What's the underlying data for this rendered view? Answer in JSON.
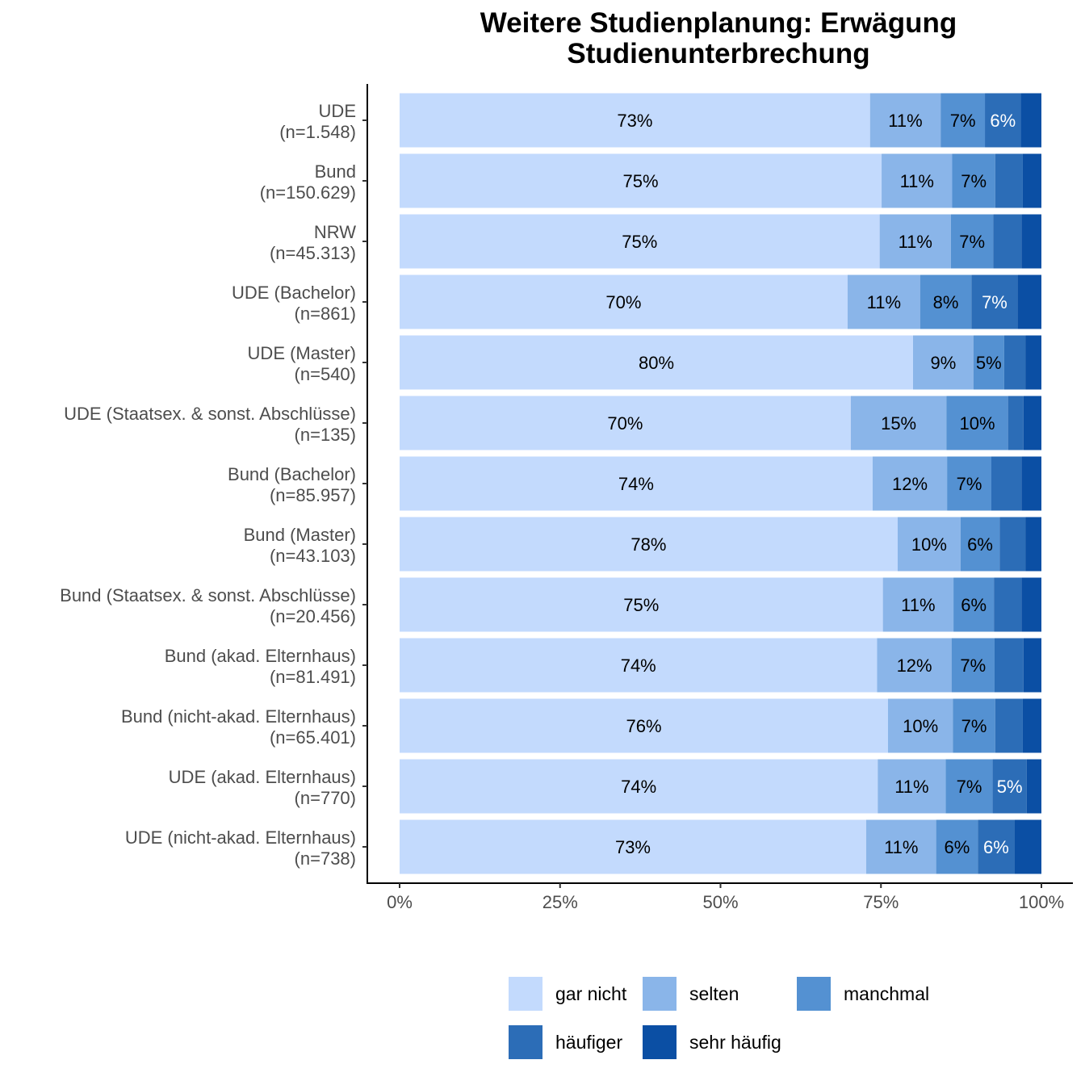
{
  "chart_data": {
    "type": "bar",
    "orientation": "horizontal",
    "stacked": true,
    "title": [
      "Weitere Studienplanung: Erwägung",
      "Studienunterbrechung"
    ],
    "xlim": [
      0,
      100
    ],
    "x_ticks": [
      "0%",
      "25%",
      "50%",
      "75%",
      "100%"
    ],
    "categories": [
      [
        "UDE",
        "(n=1.548)"
      ],
      [
        "Bund",
        "(n=150.629)"
      ],
      [
        "NRW",
        "(n=45.313)"
      ],
      [
        "UDE (Bachelor)",
        "(n=861)"
      ],
      [
        "UDE (Master)",
        "(n=540)"
      ],
      [
        "UDE (Staatsex. & sonst. Abschlüsse)",
        "(n=135)"
      ],
      [
        "Bund (Bachelor)",
        "(n=85.957)"
      ],
      [
        "Bund (Master)",
        "(n=43.103)"
      ],
      [
        "Bund (Staatsex. & sonst. Abschlüsse)",
        "(n=20.456)"
      ],
      [
        "Bund (akad. Elternhaus)",
        "(n=81.491)"
      ],
      [
        "Bund (nicht-akad. Elternhaus)",
        "(n=65.401)"
      ],
      [
        "UDE (akad. Elternhaus)",
        "(n=770)"
      ],
      [
        "UDE (nicht-akad. Elternhaus)",
        "(n=738)"
      ]
    ],
    "series": [
      {
        "name": "gar nicht",
        "color": "#c3dafd",
        "label_color": "#000000",
        "values": [
          73.3,
          75.1,
          74.8,
          69.8,
          80.0,
          70.3,
          73.7,
          77.6,
          75.3,
          74.4,
          76.1,
          74.5,
          72.7
        ],
        "labels": [
          "73%",
          "75%",
          "75%",
          "70%",
          "80%",
          "70%",
          "74%",
          "78%",
          "75%",
          "74%",
          "76%",
          "74%",
          "73%"
        ]
      },
      {
        "name": "selten",
        "color": "#8ab5e9",
        "label_color": "#000000",
        "values": [
          11.0,
          11.0,
          11.1,
          11.3,
          9.4,
          14.9,
          11.6,
          9.8,
          11.0,
          11.6,
          10.1,
          10.6,
          10.9
        ],
        "labels": [
          "11%",
          "11%",
          "11%",
          "11%",
          "9%",
          "15%",
          "12%",
          "10%",
          "11%",
          "12%",
          "10%",
          "11%",
          "11%"
        ]
      },
      {
        "name": "manchmal",
        "color": "#5491d2",
        "label_color": "#000000",
        "values": [
          6.9,
          6.7,
          6.6,
          8.0,
          4.8,
          9.6,
          6.9,
          6.1,
          6.3,
          6.7,
          6.6,
          7.3,
          6.5
        ],
        "labels": [
          "7%",
          "7%",
          "7%",
          "8%",
          "5%",
          "10%",
          "7%",
          "6%",
          "6%",
          "7%",
          "7%",
          "7%",
          "6%"
        ]
      },
      {
        "name": "häufiger",
        "color": "#2c6db7",
        "label_color": "#ffffff",
        "values": [
          5.6,
          4.3,
          4.4,
          7.2,
          3.3,
          2.4,
          4.7,
          4.0,
          4.3,
          4.5,
          4.3,
          5.3,
          5.7
        ],
        "labels": [
          "6%",
          "",
          "",
          "7%",
          "",
          "",
          "",
          "",
          "",
          "",
          "",
          "5%",
          "6%"
        ]
      },
      {
        "name": "sehr häufig",
        "color": "#0b4fa4",
        "label_color": "#ffffff",
        "values": [
          3.2,
          2.9,
          3.1,
          3.7,
          2.5,
          2.8,
          3.1,
          2.5,
          3.1,
          2.8,
          2.9,
          2.3,
          4.2
        ],
        "labels": [
          "",
          "",
          "",
          "",
          "",
          "",
          "",
          "",
          "",
          "",
          "",
          "",
          ""
        ]
      }
    ],
    "legend": {
      "position": "bottom"
    },
    "grid": false
  }
}
